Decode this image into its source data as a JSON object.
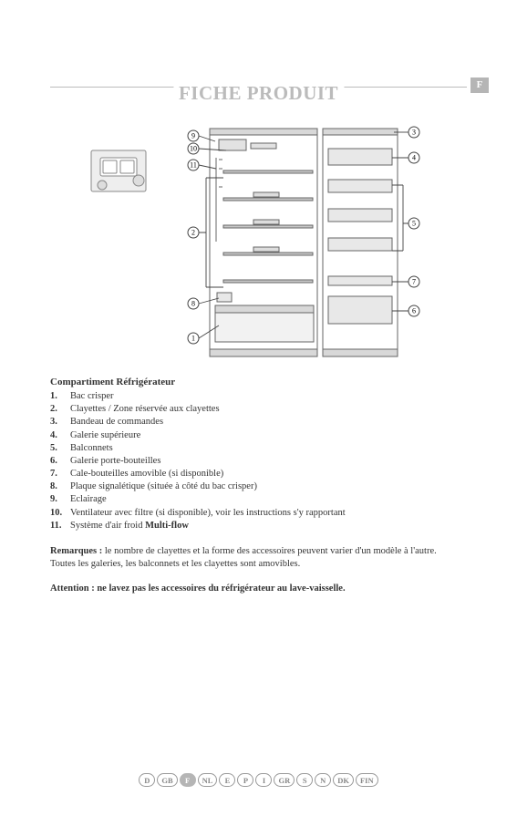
{
  "header": {
    "title": "FICHE PRODUIT",
    "corner_lang": "F"
  },
  "diagram": {
    "callouts": [
      "1",
      "2",
      "3",
      "4",
      "5",
      "6",
      "7",
      "8",
      "9",
      "10",
      "11"
    ],
    "line_color": "#555555",
    "bg": "#ffffff",
    "fridge_color": "#b8b8b8",
    "shelf_color": "#888888",
    "callout_radius": 6,
    "callout_font": 8
  },
  "parts": {
    "subtitle": "Compartiment Réfrigérateur",
    "items": [
      {
        "n": "1.",
        "label": "Bac crisper"
      },
      {
        "n": "2.",
        "label": "Clayettes / Zone réservée aux clayettes"
      },
      {
        "n": "3.",
        "label": "Bandeau de commandes"
      },
      {
        "n": "4.",
        "label": "Galerie supérieure"
      },
      {
        "n": "5.",
        "label": "Balconnets"
      },
      {
        "n": "6.",
        "label": "Galerie porte-bouteilles"
      },
      {
        "n": "7.",
        "label": "Cale-bouteilles amovible (si disponible)"
      },
      {
        "n": "8.",
        "label": "Plaque signalétique (située à côté du bac crisper)"
      },
      {
        "n": "9.",
        "label": "Eclairage"
      },
      {
        "n": "10.",
        "label": "Ventilateur avec filtre (si disponible), voir les instructions s'y rapportant"
      },
      {
        "n": "11.",
        "label": "Système d'air froid ",
        "bold_tail": "Multi-flow"
      }
    ]
  },
  "notes": {
    "label": "Remarques :",
    "text1": " le nombre de clayettes et la forme des accessoires peuvent varier d'un modèle à l'autre.",
    "text2": "Toutes les galeries, les balconnets et les clayettes sont amovibles."
  },
  "warning": "Attention : ne lavez pas les accessoires du réfrigérateur au lave-vaisselle.",
  "footer_langs": [
    "D",
    "GB",
    "F",
    "NL",
    "E",
    "P",
    "I",
    "GR",
    "S",
    "N",
    "DK",
    "FIN"
  ],
  "footer_active": "F"
}
